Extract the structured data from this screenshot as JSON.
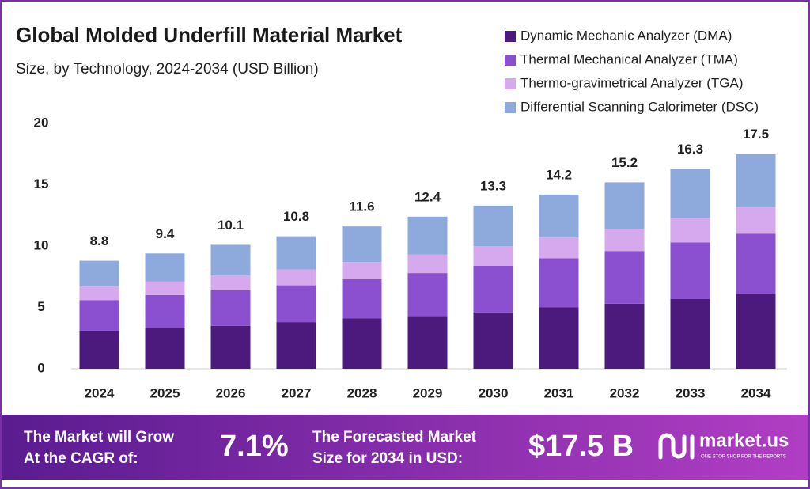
{
  "chart_data": {
    "type": "stacked-bar",
    "title": "Global Molded Underfill Material Market",
    "subtitle": "Size, by Technology, 2024-2034 (USD Billion)",
    "categories": [
      "2024",
      "2025",
      "2026",
      "2027",
      "2028",
      "2029",
      "2030",
      "2031",
      "2032",
      "2033",
      "2034"
    ],
    "series": [
      {
        "name": "Dynamic Mechanic Analyzer (DMA)",
        "color": "#4b1a7c",
        "values": [
          3.1,
          3.3,
          3.5,
          3.8,
          4.1,
          4.3,
          4.6,
          5.0,
          5.3,
          5.7,
          6.1
        ]
      },
      {
        "name": "Thermal Mechanical Analyzer (TMA)",
        "color": "#8b50cf",
        "values": [
          2.5,
          2.7,
          2.9,
          3.0,
          3.2,
          3.5,
          3.8,
          4.0,
          4.3,
          4.6,
          4.9
        ]
      },
      {
        "name": "Thermo-gravimetrical Analyzer (TGA)",
        "color": "#d6a8ee",
        "values": [
          1.1,
          1.1,
          1.2,
          1.3,
          1.4,
          1.5,
          1.6,
          1.7,
          1.8,
          2.0,
          2.2
        ]
      },
      {
        "name": "Differential Scanning Calorimeter (DSC)",
        "color": "#8ea9dc",
        "values": [
          2.1,
          2.3,
          2.5,
          2.7,
          2.9,
          3.1,
          3.3,
          3.5,
          3.8,
          4.0,
          4.3
        ]
      }
    ],
    "totals": [
      8.8,
      9.4,
      10.1,
      10.8,
      11.6,
      12.4,
      13.3,
      14.2,
      15.2,
      16.3,
      17.5
    ],
    "ylim": [
      0,
      20
    ],
    "yticks": [
      0,
      5,
      10,
      15,
      20
    ],
    "grid": false,
    "legend": "top-right"
  },
  "footer": {
    "cagr_text": [
      "The Market will Grow",
      "At the CAGR of:"
    ],
    "cagr_value": "7.1%",
    "forecast_text": [
      "The Forecasted Market",
      "Size for 2034 in USD:"
    ],
    "forecast_value": "$17.5 B",
    "brand": "market.us",
    "tagline": "ONE STOP SHOP FOR THE REPORTS"
  }
}
